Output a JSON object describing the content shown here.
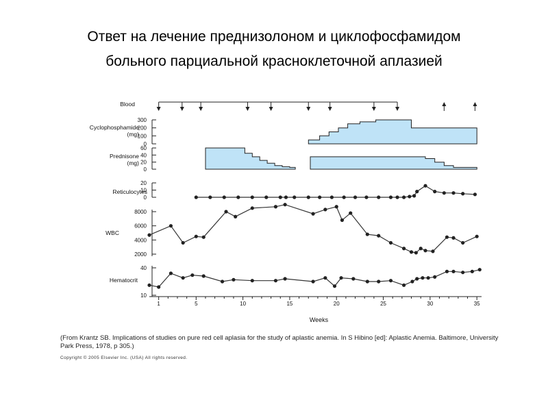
{
  "slide": {
    "title_line1": "Ответ на лечение преднизолоном и циклофосфамидом",
    "title_line2": "больного парциальной красноклеточной аплазией"
  },
  "caption": {
    "source": "(From Krantz SB. Implications of studies on pure red cell aplasia for the study of aplastic anemia. In S Hibino [ed]: Aplastic Anemia. Baltimore, University Park Press, 1978, p 305.)",
    "copyright": "Copyright © 2005 Elsevier Inc. (USA) All rights reserved."
  },
  "colors": {
    "fill": "#bfe3f7",
    "line": "#222222",
    "stroke": "#333333"
  },
  "chart_data": {
    "type": "line",
    "xlabel": "Weeks",
    "xlim": [
      0,
      35.5
    ],
    "xticks": [
      1,
      5,
      10,
      15,
      20,
      25,
      30,
      35
    ],
    "panels": {
      "blood": {
        "label": "Blood",
        "draws_down": [
          1,
          3.5,
          5.5,
          10.5,
          13,
          17,
          19.3,
          24,
          26.5
        ],
        "transfusions_up": [
          31.5,
          34.8
        ]
      },
      "cyclophosphamide": {
        "label": [
          "Cyclophosphamide",
          "(mg)"
        ],
        "ylim": [
          0,
          300
        ],
        "yticks": [
          300,
          200,
          100,
          0
        ],
        "steps": [
          [
            17,
            50
          ],
          [
            18.2,
            100
          ],
          [
            19.2,
            150
          ],
          [
            20.2,
            200
          ],
          [
            21.2,
            250
          ],
          [
            22.5,
            275
          ],
          [
            24.2,
            300
          ],
          [
            28,
            200
          ],
          [
            35,
            200
          ]
        ]
      },
      "prednisone": {
        "label": [
          "Prednisone",
          "(mg)"
        ],
        "ylim": [
          0,
          60
        ],
        "yticks": [
          60,
          40,
          20,
          0
        ],
        "segments": [
          [
            [
              6,
              60
            ],
            [
              10.2,
              45
            ],
            [
              11,
              35
            ],
            [
              11.8,
              25
            ],
            [
              12.6,
              17
            ],
            [
              13.4,
              10
            ],
            [
              14.2,
              7
            ],
            [
              15,
              5
            ],
            [
              15.6,
              5
            ]
          ],
          [
            [
              17.2,
              35
            ],
            [
              29.5,
              30
            ],
            [
              30.5,
              20
            ],
            [
              31.5,
              10
            ],
            [
              32.5,
              5
            ],
            [
              35,
              5
            ]
          ]
        ]
      },
      "reticulocytes": {
        "label": "Reticulocytes",
        "ylim": [
          0,
          20
        ],
        "yticks": [
          20,
          10,
          0
        ],
        "x": [
          5,
          6.5,
          8,
          9.5,
          11,
          12.5,
          14,
          14.6,
          15.5,
          17,
          18.2,
          19.5,
          20.8,
          22,
          23.2,
          24.5,
          25.8,
          26.5,
          27.2,
          27.8,
          28.3,
          28.6,
          29.5,
          30.5,
          31.5,
          32.5,
          33.5,
          34.8
        ],
        "y": [
          0,
          0,
          0,
          0,
          0,
          0,
          0,
          0,
          0,
          0,
          0,
          0,
          0,
          0,
          0,
          0,
          0,
          0,
          0,
          1,
          2,
          8,
          16,
          8,
          6,
          6,
          5,
          4
        ]
      },
      "wbc": {
        "label": "WBC",
        "ylim": [
          2000,
          8000
        ],
        "yticks": [
          8000,
          6000,
          4000,
          2000
        ],
        "x": [
          0,
          2.3,
          3.6,
          5,
          5.8,
          8.2,
          9.2,
          11,
          13.5,
          14.5,
          17.5,
          18.8,
          20,
          20.6,
          21.5,
          23.3,
          24.5,
          25.8,
          27.2,
          28,
          28.5,
          29,
          29.5,
          30.3,
          31.8,
          32.5,
          33.5,
          35
        ],
        "y": [
          4700,
          6000,
          3600,
          4500,
          4400,
          8000,
          7300,
          8500,
          8700,
          9000,
          7700,
          8300,
          8700,
          6800,
          7800,
          4800,
          4600,
          3600,
          2800,
          2300,
          2200,
          2800,
          2500,
          2400,
          4400,
          4300,
          3600,
          4500
        ]
      },
      "hematocrit": {
        "label": "Hematocrit",
        "ylim": [
          10,
          40
        ],
        "yticks": [
          40,
          10
        ],
        "x": [
          0,
          1,
          2.3,
          3.6,
          4.6,
          5.8,
          7.8,
          9,
          11,
          13.5,
          14.5,
          17.5,
          18.8,
          19.8,
          20.5,
          21.8,
          23.3,
          24.5,
          25.8,
          27.2,
          28.1,
          28.6,
          29.2,
          29.8,
          30.5,
          31.8,
          32.5,
          33.5,
          34.5,
          35.3
        ],
        "y": [
          21,
          19,
          34,
          29,
          32,
          31,
          25,
          27,
          26,
          26,
          28,
          25,
          29,
          20,
          29,
          28,
          25,
          25,
          26,
          21,
          25,
          28,
          29,
          29,
          30,
          36,
          36,
          35,
          36,
          38
        ]
      }
    }
  }
}
